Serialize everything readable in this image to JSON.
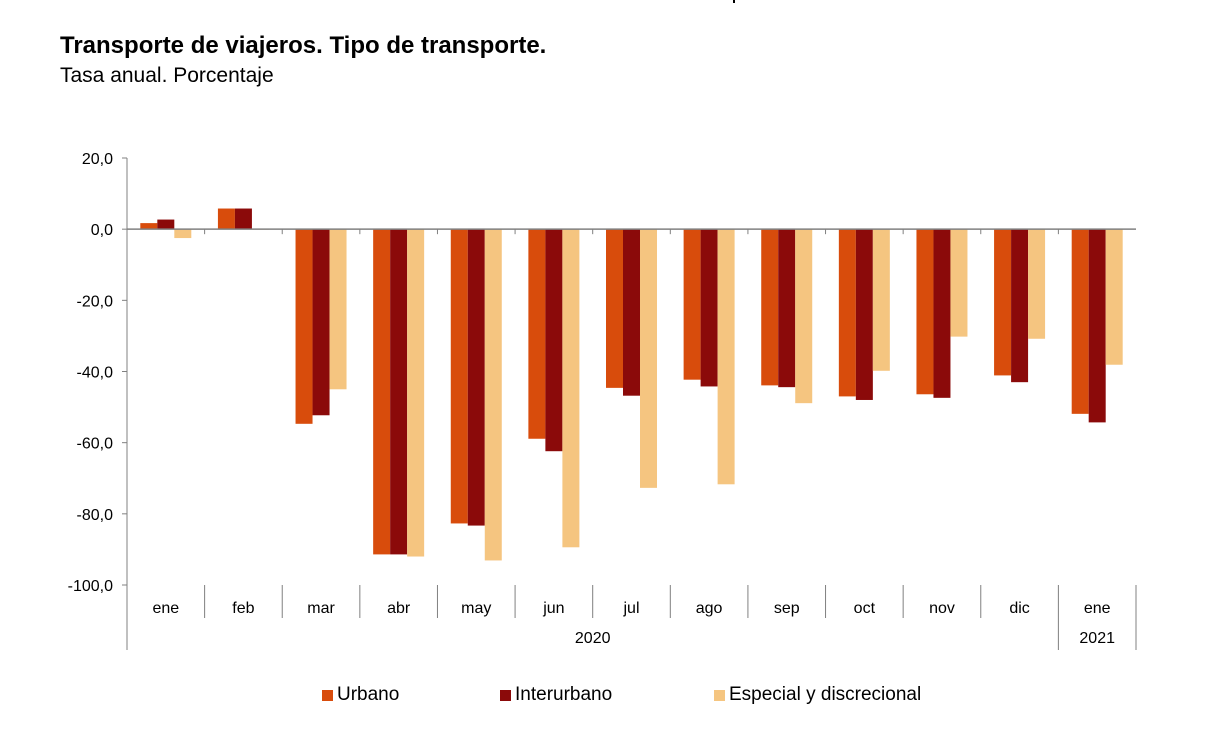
{
  "header": {
    "title": "Transporte de viajeros. Tipo de transporte.",
    "subtitle": "Tasa anual. Porcentaje"
  },
  "chart_data": {
    "type": "bar",
    "title": "Transporte de viajeros. Tipo de transporte.",
    "subtitle": "Tasa anual. Porcentaje",
    "xlabel": "",
    "ylabel": "",
    "ylim": [
      -100,
      20
    ],
    "yticks": [
      20,
      0,
      -20,
      -40,
      -60,
      -80,
      -100
    ],
    "ytick_labels": [
      "20,0",
      "0,0",
      "-20,0",
      "-40,0",
      "-60,0",
      "-80,0",
      "-100,0"
    ],
    "grid": false,
    "categories": [
      "ene",
      "feb",
      "mar",
      "abr",
      "may",
      "jun",
      "jul",
      "ago",
      "sep",
      "oct",
      "nov",
      "dic",
      "ene"
    ],
    "year_groups": [
      {
        "label": "2020",
        "start": 0,
        "end": 11
      },
      {
        "label": "2021",
        "start": 12,
        "end": 12
      }
    ],
    "series": [
      {
        "name": "Urbano",
        "color": "#D84C0C",
        "values": [
          1.7,
          5.8,
          -54.7,
          -91.4,
          -82.7,
          -58.9,
          -44.6,
          -42.3,
          -43.9,
          -47.0,
          -46.4,
          -41.1,
          -51.9
        ]
      },
      {
        "name": "Interurbano",
        "color": "#8B0A0A",
        "values": [
          2.7,
          5.8,
          -52.3,
          -91.4,
          -83.3,
          -62.4,
          -46.8,
          -44.2,
          -44.4,
          -48.0,
          -47.4,
          -43.0,
          -54.3
        ]
      },
      {
        "name": "Especial y discrecional",
        "color": "#F5C580",
        "values": [
          -2.5,
          0.1,
          -45.0,
          -92.0,
          -93.1,
          -89.4,
          -72.7,
          -71.7,
          -48.9,
          -39.8,
          -30.2,
          -30.8,
          -38.1
        ]
      }
    ],
    "legend": {
      "position": "bottom"
    }
  }
}
